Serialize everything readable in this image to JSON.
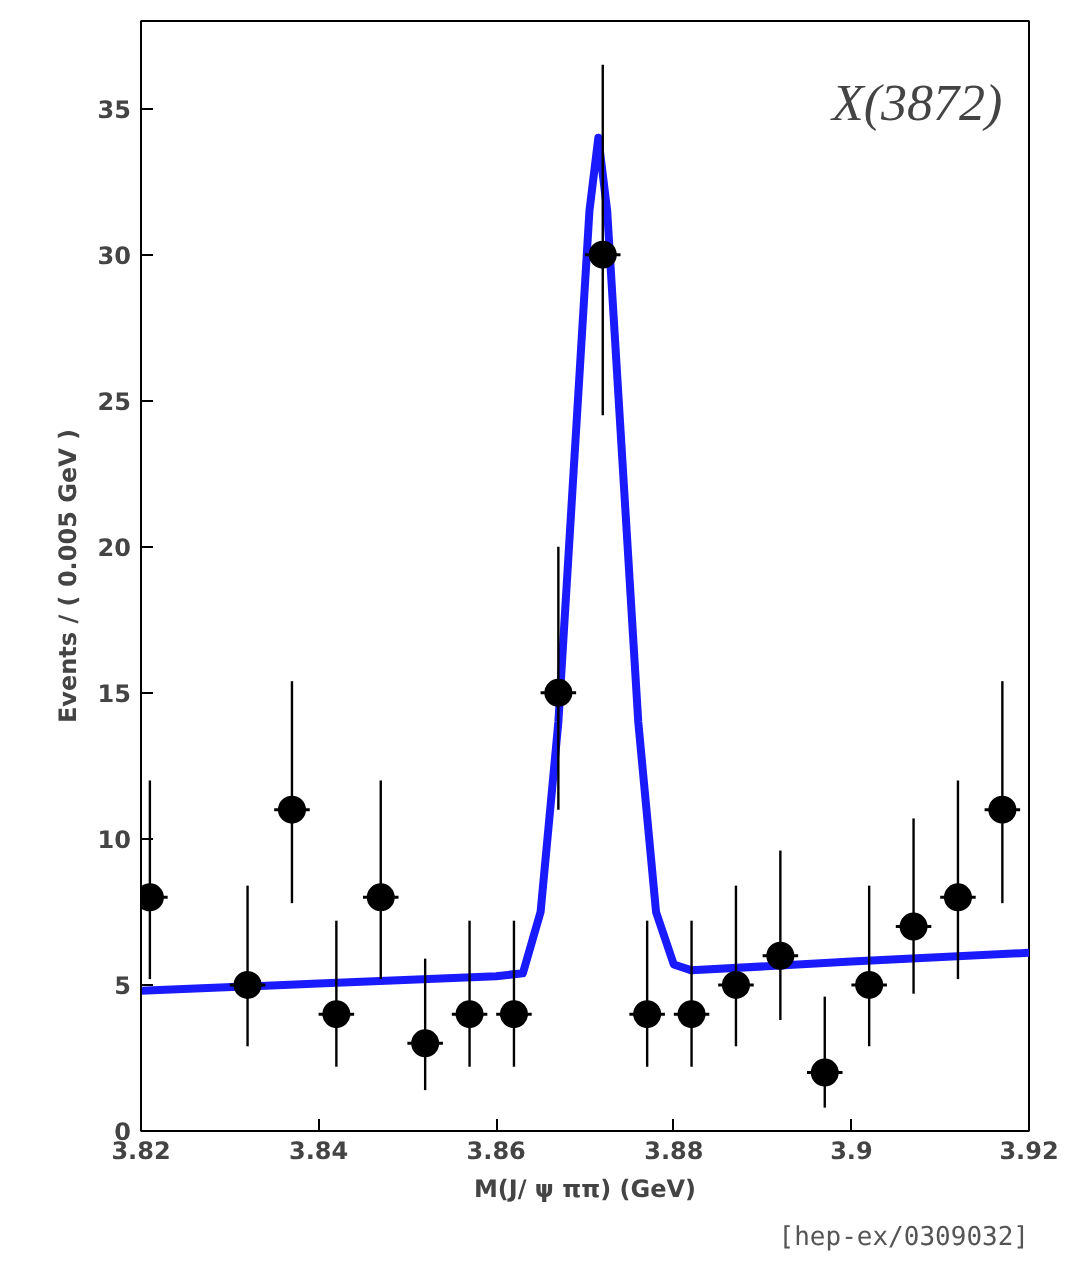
{
  "chart_data": {
    "type": "scatter",
    "xlabel": "M(J/ ψ ππ) (GeV)",
    "ylabel": "Events / ( 0.005 GeV )",
    "xlim": [
      3.82,
      3.92
    ],
    "ylim": [
      0,
      38
    ],
    "xticks": [
      3.82,
      3.84,
      3.86,
      3.88,
      {
        "value": 3.9,
        "label": "3.9"
      },
      3.92
    ],
    "yticks": [
      0,
      5,
      10,
      15,
      20,
      25,
      30,
      35
    ],
    "grid": false,
    "annotations": [
      "X(3872)",
      "[hep-ex/0309032]"
    ],
    "series": [
      {
        "color": "#000000",
        "marker": "circle",
        "x": [
          3.821,
          3.832,
          3.837,
          3.842,
          3.847,
          3.852,
          3.857,
          3.862,
          3.867,
          3.872,
          3.877,
          3.882,
          3.887,
          3.892,
          3.897,
          3.902,
          3.907,
          3.912,
          3.917
        ],
        "values": [
          8,
          5,
          11,
          4,
          8,
          3,
          4,
          4,
          15,
          30,
          4,
          4,
          5,
          6,
          2,
          5,
          7,
          8,
          11
        ],
        "errors": [
          [
            5.2,
            12
          ],
          [
            2.9,
            8.4
          ],
          [
            7.8,
            15.4
          ],
          [
            2.2,
            7.2
          ],
          [
            5.2,
            12
          ],
          [
            1.4,
            5.9
          ],
          [
            2.2,
            7.2
          ],
          [
            2.2,
            7.2
          ],
          [
            11,
            20
          ],
          [
            24.5,
            36.5
          ],
          [
            2.2,
            7.2
          ],
          [
            2.2,
            7.2
          ],
          [
            2.9,
            8.4
          ],
          [
            3.8,
            9.6
          ],
          [
            0.8,
            4.6
          ],
          [
            2.9,
            8.4
          ],
          [
            4.7,
            10.7
          ],
          [
            5.2,
            12
          ],
          [
            7.8,
            15.4
          ]
        ],
        "xerrors": [
          0.002,
          0.002,
          0.002,
          0.002,
          0.002,
          0.002,
          0.002,
          0.002,
          0.002,
          0.002,
          0.002,
          0.002,
          0.002,
          0.002,
          0.002,
          0.002,
          0.002,
          0.002,
          0.002
        ]
      },
      {
        "type": "line",
        "color": "#1a1aff",
        "line_style": "solid",
        "x": [
          3.82,
          3.84,
          3.86,
          3.863,
          3.865,
          3.867,
          3.869,
          3.8705,
          3.8715,
          3.8725,
          3.874,
          3.876,
          3.878,
          3.88,
          3.882,
          3.9,
          3.92
        ],
        "values": [
          4.8,
          5.05,
          5.3,
          5.4,
          7.5,
          14,
          24,
          31.5,
          34,
          31.5,
          24,
          14,
          7.5,
          5.7,
          5.5,
          5.8,
          6.1
        ]
      }
    ]
  }
}
